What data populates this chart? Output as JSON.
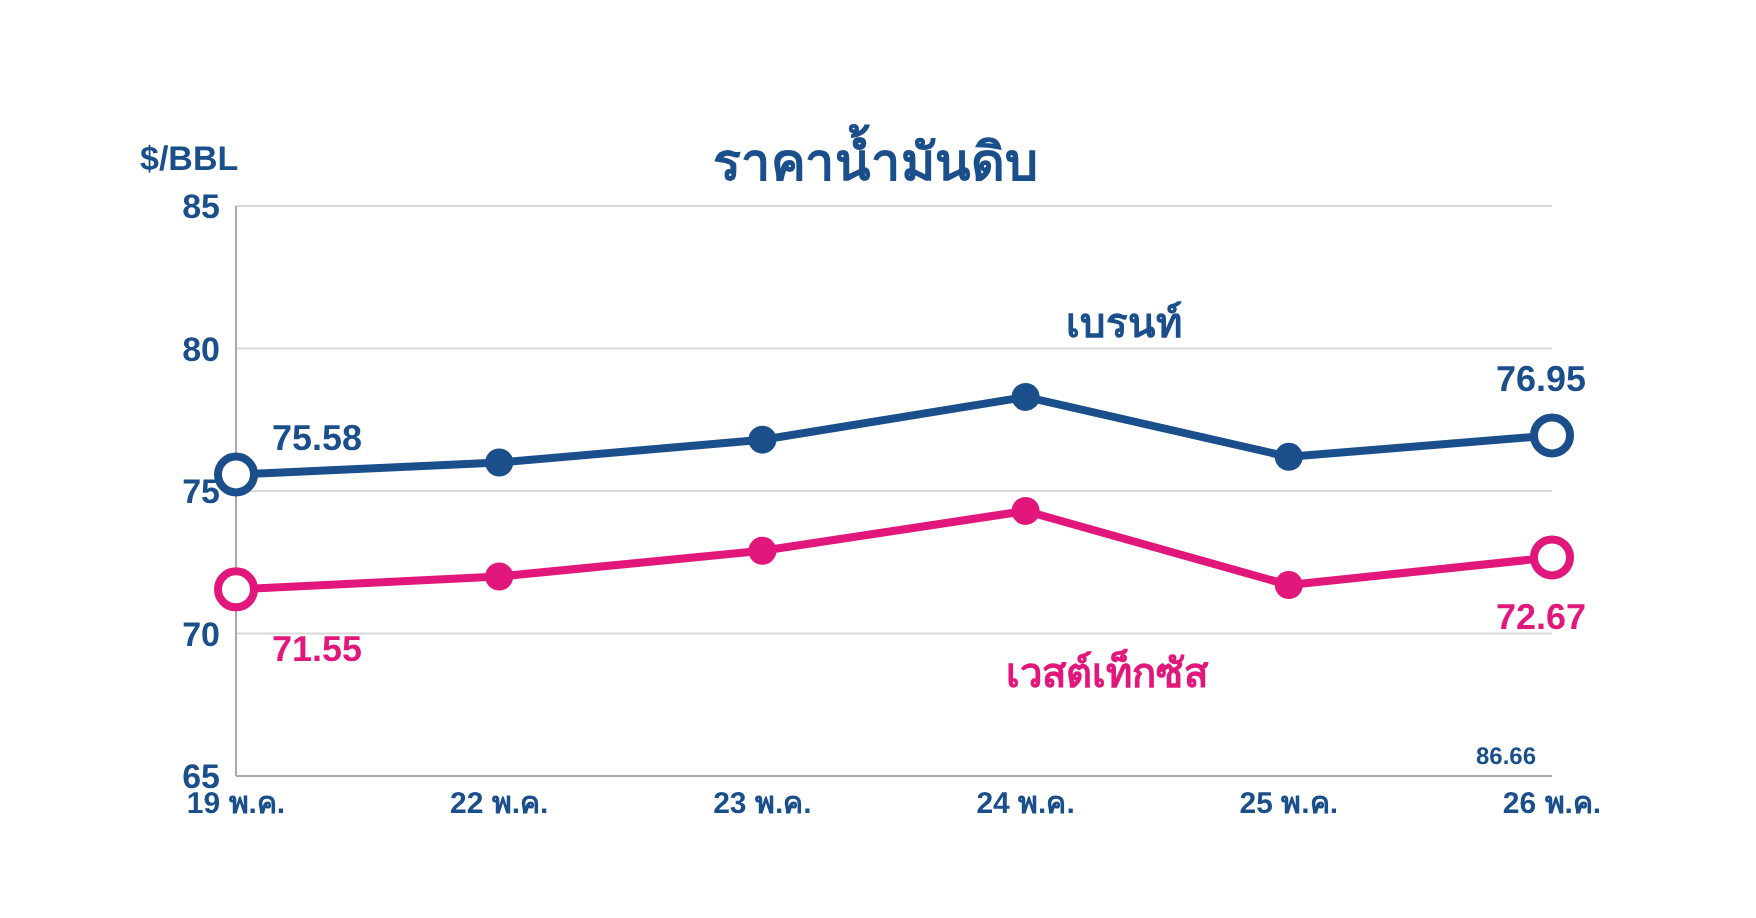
{
  "chart_data": {
    "type": "line",
    "title": "ราคาน้ำมันดิบ",
    "ylabel": "$/BBL",
    "categories": [
      "19 พ.ค.",
      "22 พ.ค.",
      "23 พ.ค.",
      "24 พ.ค.",
      "25 พ.ค.",
      "26 พ.ค."
    ],
    "series": [
      {
        "name": "เบรนท์",
        "color": "#1b4f8c",
        "values": [
          75.58,
          76.0,
          76.8,
          78.3,
          76.2,
          76.95
        ],
        "value_labels": [
          "75.58",
          null,
          null,
          null,
          null,
          "76.95"
        ]
      },
      {
        "name": "เวสต์เท็กซัส",
        "color": "#e2177b",
        "values": [
          71.55,
          72.0,
          72.9,
          74.3,
          71.7,
          72.67
        ],
        "value_labels": [
          "71.55",
          null,
          null,
          null,
          null,
          "72.67"
        ]
      }
    ],
    "ylim": [
      65,
      85
    ],
    "yticks": [
      65,
      70,
      75,
      80,
      85
    ],
    "grid": "y",
    "legend": false,
    "marker": "circle",
    "line_style": "solid",
    "annotations": [
      "86.66"
    ]
  }
}
